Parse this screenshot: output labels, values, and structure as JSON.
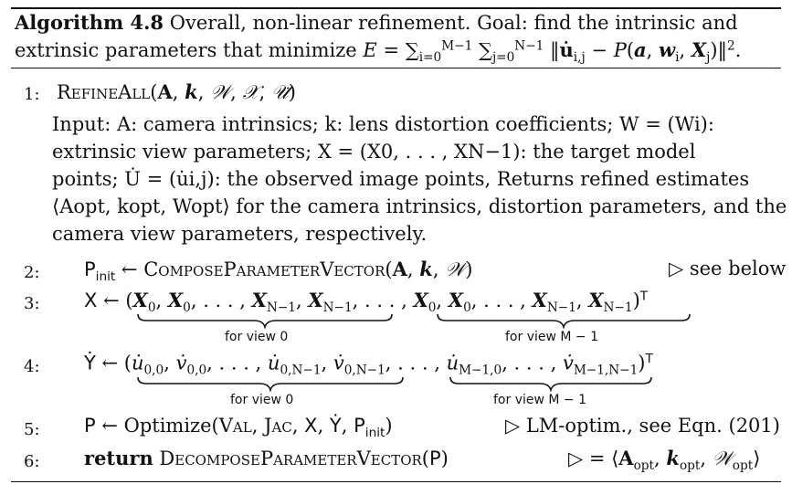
{
  "header": {
    "label": "Algorithm 4.8",
    "title": "Overall, non-linear refinement. Goal: find the intrinsic and",
    "title_line2_prefix": "extrinsic parameters that minimize",
    "objective": "E = Σ_{i=0}^{M−1} Σ_{j=0}^{N−1} ‖u̇_{i,j} − P(a, w_i, X_j)‖².",
    "objective_display": "E = ∑i=0M−1 ∑j=0N−1 ‖u̇i,j − P(a, wi, Xj)‖²."
  },
  "lines": [
    {
      "num": "1:",
      "text": "RefineAll(A, k, W, X, U̇)"
    },
    {
      "num": "",
      "text": "Input: A: camera intrinsics; k: lens distortion coefficients; W = (Wᵢ): extrinsic view parameters; X = (X₀, . . . , X_{N−1}): the target model points; U̇ = (u̇_{i,j}): the observed image points, Returns refined estimates ⟨A_opt, k_opt, W_opt⟩ for the camera intrinsics, distortion parameters, and the camera view parameters, respectively."
    },
    {
      "num": "2:",
      "text": "Pinit ← ComposeParameterVector(A, k, W)",
      "comment": "▷ see below"
    },
    {
      "num": "3:",
      "text": "X ← (X0, X0, . . . , XN−1, XN−1, . . . , X0, X0, . . . , XN−1, XN−1)ᵀ"
    },
    {
      "num": "4:",
      "text": "Ẏ ← (u̇0,0, v̇0,0, . . . , u̇0,N−1, v̇0,N−1, . . . , u̇M−1,0, . . . , v̇M−1,N−1)ᵀ"
    },
    {
      "num": "5:",
      "text": "P ← Optimize(Val, Jac, X, Ẏ, Pinit)",
      "comment": "▷ LM-optim., see Eqn. (201)"
    },
    {
      "num": "6:",
      "text": "return DecomposeParameterVector(P)",
      "comment": "▷ = ⟨Aopt, kopt, Wopt⟩"
    }
  ],
  "input_block": [
    "Input: A: camera intrinsics; k: lens distortion coefficients; W = (Wi):",
    "extrinsic view parameters; X = (X0, . . . , XN−1): the target model",
    "points; U̇ = (u̇i,j): the observed image points, Returns refined estimates",
    "⟨Aopt, kopt, Wopt⟩ for the camera intrinsics, distortion parameters, and the",
    "camera view parameters, respectively."
  ],
  "braces": {
    "line3_left": "for view 0",
    "line3_right": "for view M − 1",
    "line4_left": "for view 0",
    "line4_right": "for view M − 1"
  }
}
